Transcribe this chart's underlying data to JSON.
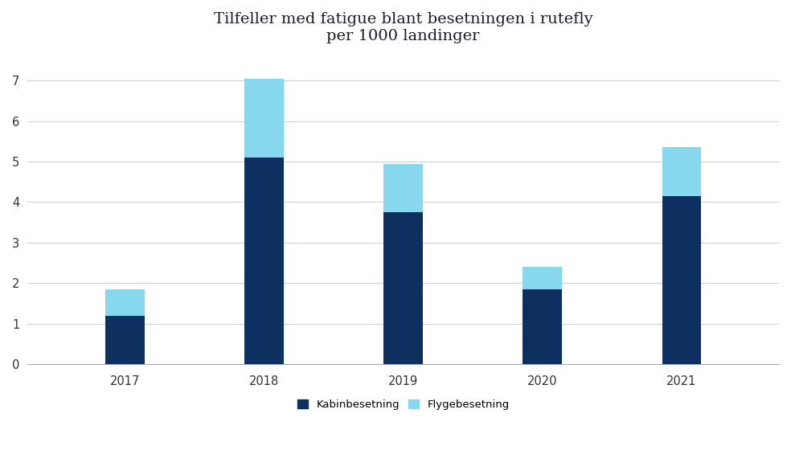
{
  "title": "Tilfeller med fatigue blant besetningen i rutefly\nper 1000 landinger",
  "categories": [
    "2017",
    "2018",
    "2019",
    "2020",
    "2021"
  ],
  "kabinbesetning": [
    1.2,
    5.1,
    3.75,
    1.85,
    4.15
  ],
  "flygebesetning": [
    0.65,
    1.95,
    1.2,
    0.55,
    1.2
  ],
  "color_kabin": "#0d3060",
  "color_flyge": "#87d8ee",
  "ylim": [
    0,
    7.5
  ],
  "yticks": [
    0,
    1,
    2,
    3,
    4,
    5,
    6,
    7
  ],
  "legend_kabin": "Kabinbesetning",
  "legend_flyge": "Flygebesetning",
  "background_color": "#ffffff",
  "bar_width": 0.28,
  "title_fontsize": 14,
  "title_color": "#1a1a2e"
}
